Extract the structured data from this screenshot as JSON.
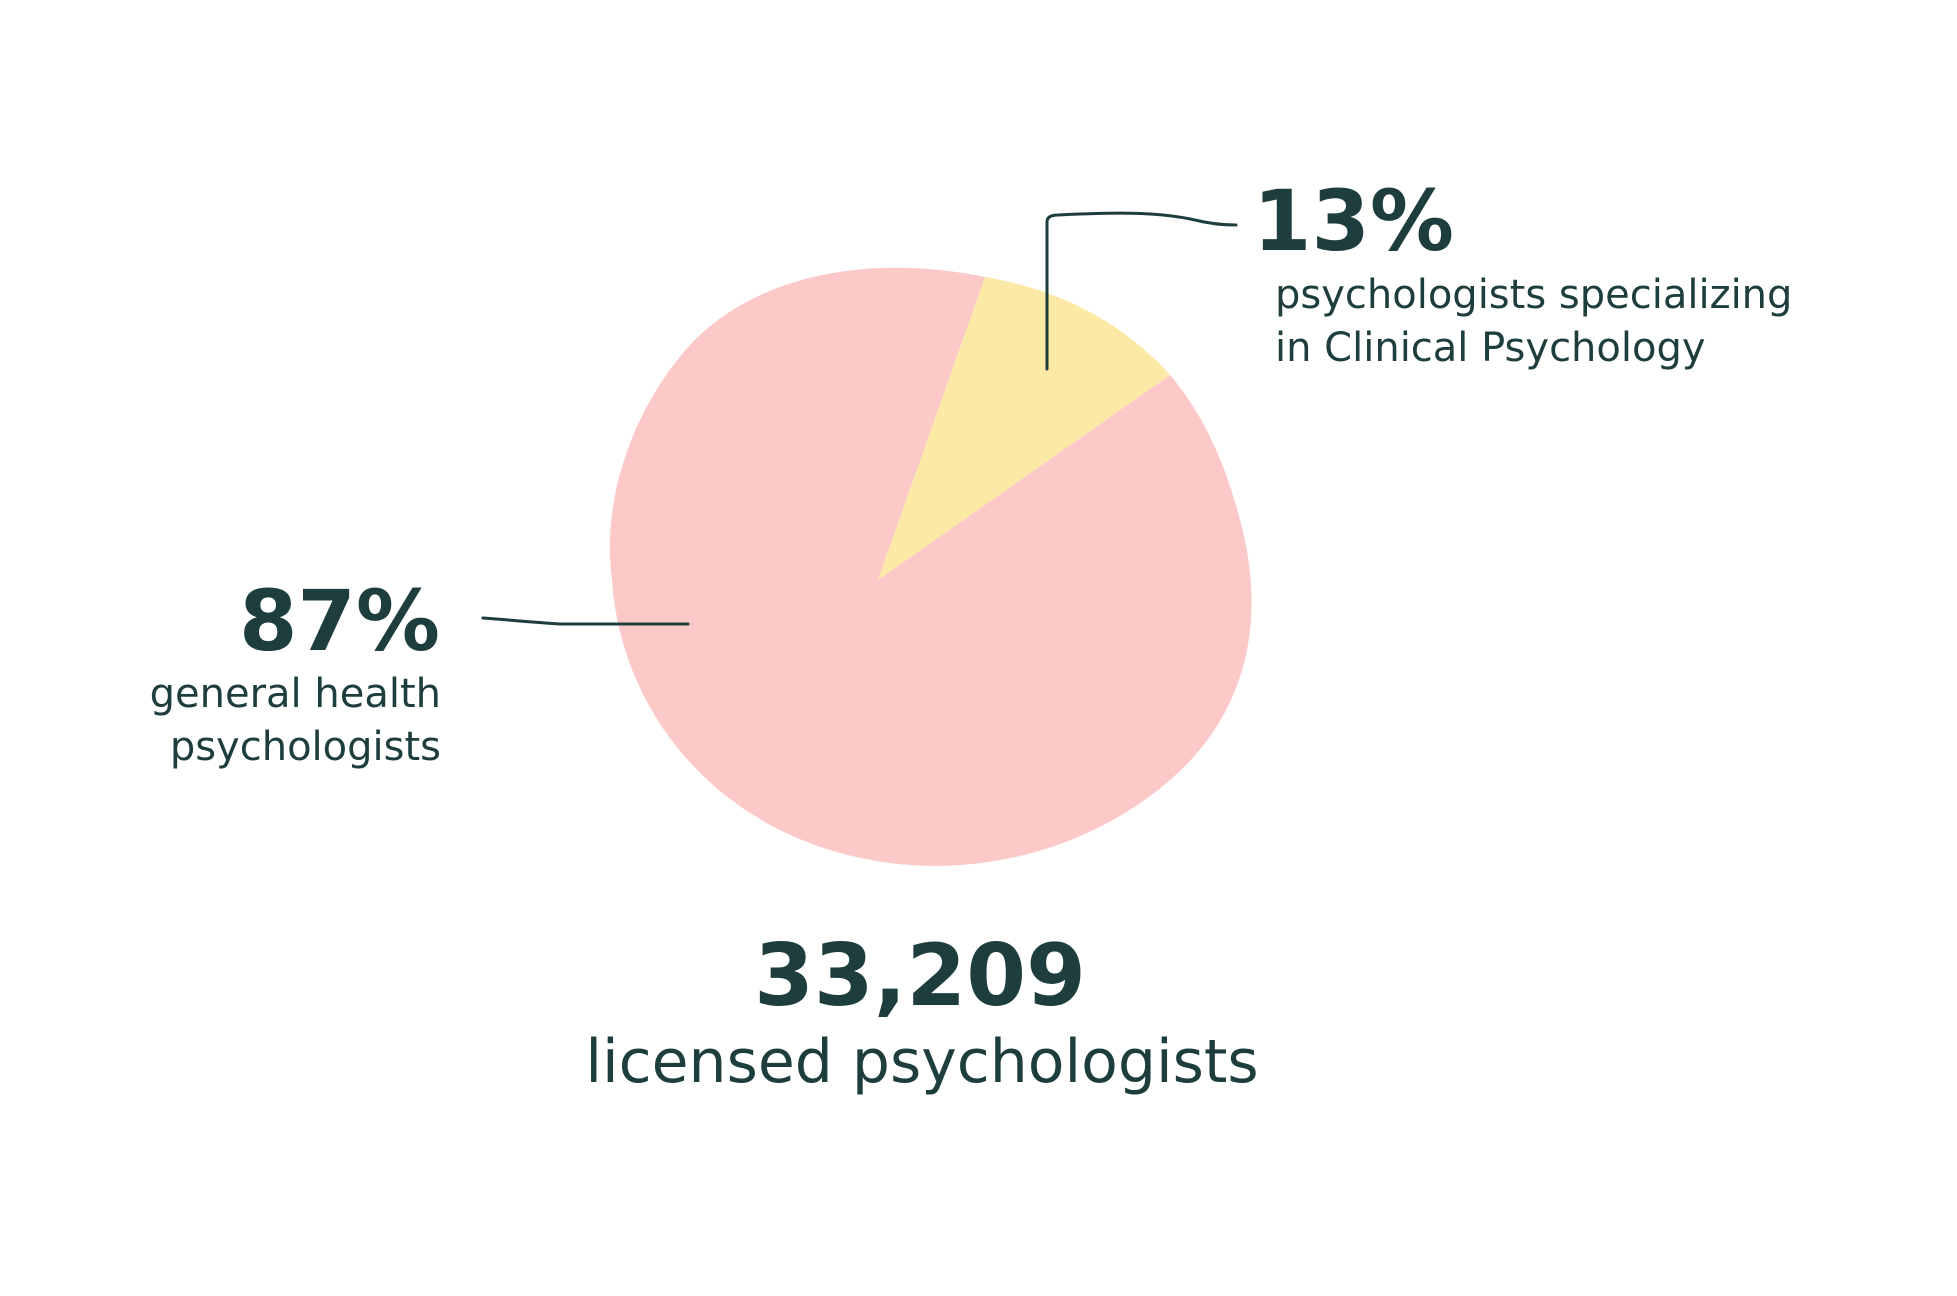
{
  "chart_data": {
    "type": "pie",
    "total": {
      "value": "33,209",
      "label": "licensed psychologists"
    },
    "slices": [
      {
        "percent_label": "87%",
        "value": 87,
        "label_lines": [
          "general health",
          "psychologists"
        ],
        "color": "#fcc9c8"
      },
      {
        "percent_label": "13%",
        "value": 13,
        "label_lines": [
          "psychologists specializing",
          "in Clinical Psychology"
        ],
        "color": "#fde9a6"
      }
    ],
    "text_color": "#1e3e3e"
  }
}
